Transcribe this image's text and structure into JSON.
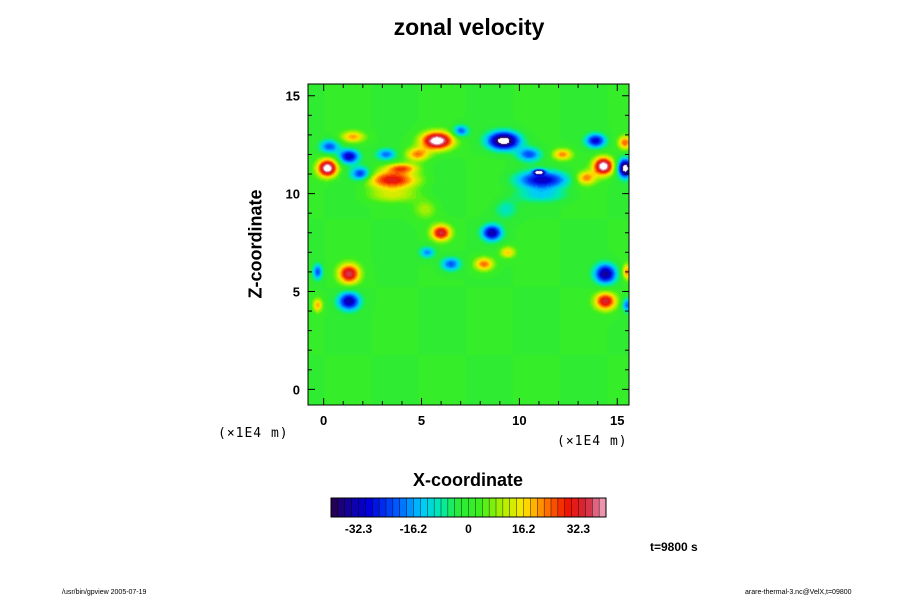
{
  "chart_data": {
    "type": "heatmap",
    "title": "zonal velocity",
    "xlabel": "X-coordinate",
    "ylabel": "Z-coordinate",
    "x_unit_labels": [
      "(×1E4 m)",
      "(×1E4 m)"
    ],
    "xlim": [
      -0.8,
      15.6
    ],
    "ylim": [
      -0.8,
      15.6
    ],
    "x_ticks": [
      0,
      5,
      10,
      15
    ],
    "y_ticks": [
      0,
      5,
      10,
      15
    ],
    "colorbar": {
      "range": [
        -40.4,
        40.4
      ],
      "levels": 40,
      "tick_values": [
        -32.3,
        -16.2,
        0,
        16.2,
        32.3
      ],
      "tick_labels": [
        "-32.3",
        "-16.2",
        "0",
        "16.2",
        "32.3"
      ]
    },
    "background_value": 0,
    "features": [
      {
        "x": 0.2,
        "z": 11.3,
        "value": 46,
        "sx": 0.5,
        "sz": 0.45
      },
      {
        "x": 0.3,
        "z": 12.4,
        "value": -22,
        "sx": 0.5,
        "sz": 0.35
      },
      {
        "x": 1.5,
        "z": 12.9,
        "value": 20,
        "sx": 0.6,
        "sz": 0.3
      },
      {
        "x": 1.3,
        "z": 11.9,
        "value": -32,
        "sx": 0.5,
        "sz": 0.35
      },
      {
        "x": 1.9,
        "z": 11.0,
        "value": -26,
        "sx": 0.5,
        "sz": 0.35
      },
      {
        "x": 3.2,
        "z": 12.0,
        "value": -20,
        "sx": 0.5,
        "sz": 0.3
      },
      {
        "x": 3.5,
        "z": 10.7,
        "value": 30,
        "sx": 1.3,
        "sz": 0.45
      },
      {
        "x": 4.0,
        "z": 11.3,
        "value": 22,
        "sx": 0.8,
        "sz": 0.25
      },
      {
        "x": 5.8,
        "z": 12.7,
        "value": 46,
        "sx": 0.8,
        "sz": 0.45
      },
      {
        "x": 4.8,
        "z": 12.0,
        "value": 22,
        "sx": 0.6,
        "sz": 0.35
      },
      {
        "x": 7.0,
        "z": 13.2,
        "value": -22,
        "sx": 0.4,
        "sz": 0.3
      },
      {
        "x": 9.2,
        "z": 12.7,
        "value": -46,
        "sx": 0.8,
        "sz": 0.45
      },
      {
        "x": 10.5,
        "z": 12.0,
        "value": -22,
        "sx": 0.6,
        "sz": 0.35
      },
      {
        "x": 12.2,
        "z": 12.0,
        "value": 22,
        "sx": 0.5,
        "sz": 0.3
      },
      {
        "x": 11.2,
        "z": 10.7,
        "value": -30,
        "sx": 1.3,
        "sz": 0.45
      },
      {
        "x": 11.0,
        "z": 11.1,
        "value": -46,
        "sx": 0.25,
        "sz": 0.12
      },
      {
        "x": 14.3,
        "z": 11.4,
        "value": 46,
        "sx": 0.5,
        "sz": 0.45
      },
      {
        "x": 13.9,
        "z": 12.7,
        "value": -30,
        "sx": 0.5,
        "sz": 0.35
      },
      {
        "x": 15.4,
        "z": 11.3,
        "value": -46,
        "sx": 0.35,
        "sz": 0.45
      },
      {
        "x": 15.4,
        "z": 12.6,
        "value": 24,
        "sx": 0.35,
        "sz": 0.35
      },
      {
        "x": 13.4,
        "z": 10.8,
        "value": 22,
        "sx": 0.5,
        "sz": 0.35
      },
      {
        "x": 6.0,
        "z": 8.0,
        "value": 34,
        "sx": 0.5,
        "sz": 0.4
      },
      {
        "x": 8.6,
        "z": 8.0,
        "value": -34,
        "sx": 0.5,
        "sz": 0.4
      },
      {
        "x": 5.3,
        "z": 7.0,
        "value": -18,
        "sx": 0.4,
        "sz": 0.3
      },
      {
        "x": 9.4,
        "z": 7.0,
        "value": 18,
        "sx": 0.4,
        "sz": 0.3
      },
      {
        "x": 6.5,
        "z": 6.4,
        "value": -22,
        "sx": 0.5,
        "sz": 0.35
      },
      {
        "x": 8.2,
        "z": 6.4,
        "value": 24,
        "sx": 0.5,
        "sz": 0.35
      },
      {
        "x": 5.2,
        "z": 9.2,
        "value": 10,
        "sx": 0.6,
        "sz": 0.5
      },
      {
        "x": 9.3,
        "z": 9.2,
        "value": -10,
        "sx": 0.6,
        "sz": 0.5
      },
      {
        "x": 1.3,
        "z": 5.9,
        "value": 36,
        "sx": 0.55,
        "sz": 0.5
      },
      {
        "x": 1.3,
        "z": 4.5,
        "value": -34,
        "sx": 0.55,
        "sz": 0.45
      },
      {
        "x": 14.4,
        "z": 5.9,
        "value": -36,
        "sx": 0.55,
        "sz": 0.5
      },
      {
        "x": 14.4,
        "z": 4.5,
        "value": 34,
        "sx": 0.55,
        "sz": 0.45
      },
      {
        "x": -0.3,
        "z": 6.0,
        "value": -22,
        "sx": 0.25,
        "sz": 0.4
      },
      {
        "x": -0.3,
        "z": 4.3,
        "value": 20,
        "sx": 0.25,
        "sz": 0.35
      },
      {
        "x": 15.5,
        "z": 6.0,
        "value": 22,
        "sx": 0.25,
        "sz": 0.4
      },
      {
        "x": 15.5,
        "z": 4.3,
        "value": -20,
        "sx": 0.25,
        "sz": 0.35
      },
      {
        "x": 3.5,
        "z": 9.9,
        "value": 10,
        "sx": 1.4,
        "sz": 0.35
      },
      {
        "x": 11.2,
        "z": 9.9,
        "value": -10,
        "sx": 1.4,
        "sz": 0.35
      }
    ]
  },
  "labels": {
    "unit_left": "(×1E4 m)",
    "unit_right": "(×1E4 m)",
    "time": "t=9800 s",
    "footer_left": "/usr/bin/gpview 2005-07-19",
    "footer_right": "arare-thermal-3.nc@VelX,t=09800"
  }
}
